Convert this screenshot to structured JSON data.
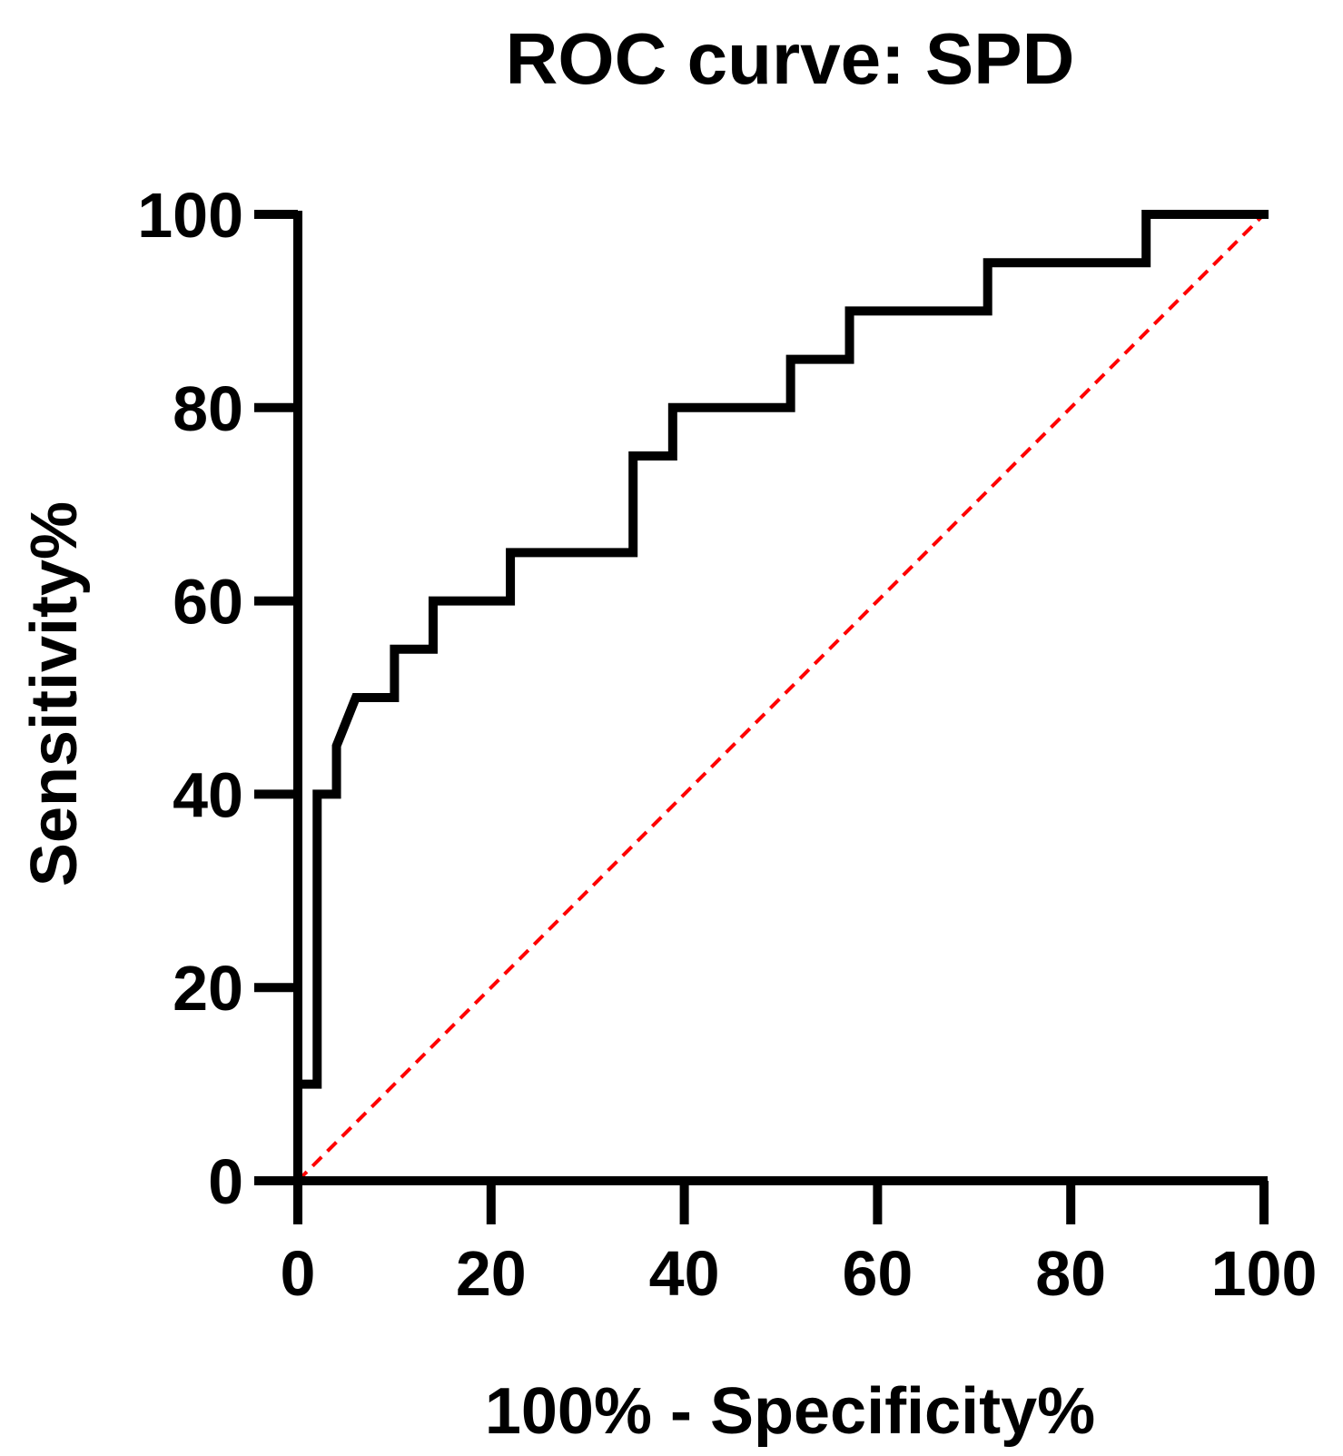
{
  "chart_data": {
    "type": "line",
    "title": "ROC curve: SPD",
    "xlabel": "100% - Specificity%",
    "ylabel": "Sensitivity%",
    "xlim": [
      0,
      100
    ],
    "ylim": [
      0,
      100
    ],
    "xticks": [
      0,
      20,
      40,
      60,
      80,
      100
    ],
    "yticks": [
      0,
      20,
      40,
      60,
      80,
      100
    ],
    "grid": false,
    "colors": {
      "roc": "#000000",
      "reference": "#ff0000",
      "axis": "#000000"
    },
    "series": [
      {
        "name": "ROC curve",
        "style": "solid",
        "x": [
          0,
          0,
          2,
          2,
          4,
          4,
          6,
          10,
          10,
          14,
          14,
          22,
          22,
          34.7,
          34.7,
          38.8,
          38.8,
          51,
          51,
          57.1,
          57.1,
          71.4,
          71.4,
          87.8,
          87.8,
          100
        ],
        "y": [
          0,
          10,
          10,
          40,
          40,
          45,
          50,
          50,
          55,
          55,
          60,
          60,
          65,
          65,
          75,
          75,
          80,
          80,
          85,
          85,
          90,
          90,
          95,
          95,
          100,
          100
        ]
      },
      {
        "name": "Reference line",
        "style": "dashed",
        "x": [
          0,
          100
        ],
        "y": [
          0,
          100
        ]
      }
    ]
  }
}
